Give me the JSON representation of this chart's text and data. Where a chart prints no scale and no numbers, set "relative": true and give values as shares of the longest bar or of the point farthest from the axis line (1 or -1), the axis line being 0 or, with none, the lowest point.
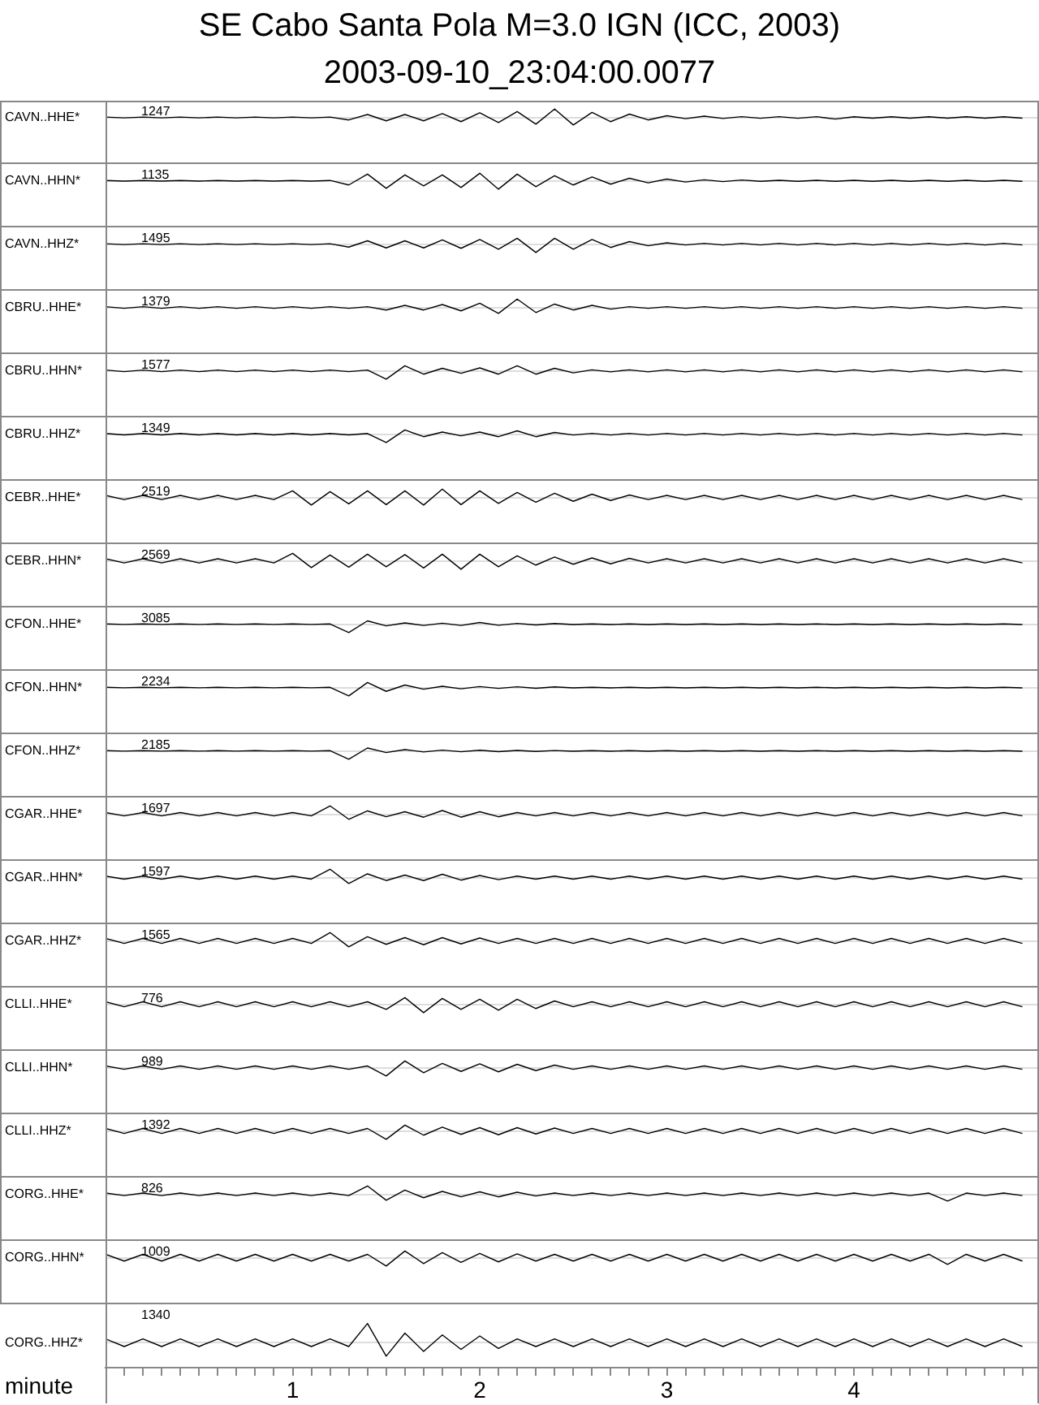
{
  "chart_data": [
    {
      "type": "line",
      "title": "SE Cabo Santa Pola M=3.0 IGN (ICC, 2003)",
      "subtitle": "2003-09-10_23:04:00.0077",
      "ylabel": "CAVN..HHE*",
      "annotations": [
        "1247"
      ],
      "relative": true,
      "tick_labels": false,
      "xlim": [
        0,
        4.98
      ],
      "color": "#000000",
      "x": [
        0,
        0.1,
        0.2,
        0.3,
        0.4,
        0.5,
        0.6,
        0.7,
        0.8,
        0.9,
        1,
        1.1,
        1.2,
        1.3,
        1.4,
        1.5,
        1.6,
        1.7,
        1.8,
        1.9,
        2,
        2.1,
        2.2,
        2.3,
        2.4,
        2.5,
        2.6,
        2.7,
        2.8,
        2.9,
        3,
        3.1,
        3.2,
        3.3,
        3.4,
        3.5,
        3.6,
        3.7,
        3.8,
        3.9,
        4,
        4.1,
        4.2,
        4.3,
        4.4,
        4.5,
        4.6,
        4.7,
        4.8,
        4.9
      ],
      "values": [
        0.05,
        -0.05,
        0.05,
        -0.05,
        0.05,
        -0.05,
        0.05,
        -0.05,
        0.05,
        -0.05,
        0.05,
        -0.05,
        0.05,
        -0.3,
        0.35,
        -0.4,
        0.35,
        -0.4,
        0.45,
        -0.5,
        0.55,
        -0.6,
        0.7,
        -0.8,
        1,
        -0.9,
        0.6,
        -0.5,
        0.4,
        -0.3,
        0.2,
        -0.15,
        0.15,
        -0.12,
        0.1,
        -0.1,
        0.1,
        -0.1,
        0.1,
        -0.2,
        0.08,
        -0.08,
        0.08,
        -0.08,
        0.08,
        -0.08,
        0.08,
        -0.08,
        0.08,
        -0.08
      ]
    },
    {
      "type": "line",
      "ylabel": "CAVN..HHN*",
      "annotations": [
        "1135"
      ],
      "relative": true,
      "tick_labels": false,
      "xlim": [
        0,
        4.98
      ],
      "color": "#000000",
      "x": [
        0,
        0.1,
        0.2,
        0.3,
        0.4,
        0.5,
        0.6,
        0.7,
        0.8,
        0.9,
        1,
        1.1,
        1.2,
        1.3,
        1.4,
        1.5,
        1.6,
        1.7,
        1.8,
        1.9,
        2,
        2.1,
        2.2,
        2.3,
        2.4,
        2.5,
        2.6,
        2.7,
        2.8,
        2.9,
        3,
        3.1,
        3.2,
        3.3,
        3.4,
        3.5,
        3.6,
        3.7,
        3.8,
        3.9,
        4,
        4.1,
        4.2,
        4.3,
        4.4,
        4.5,
        4.6,
        4.7,
        4.8,
        4.9
      ],
      "values": [
        0.04,
        -0.04,
        0.04,
        -0.04,
        0.04,
        -0.04,
        0.04,
        -0.04,
        0.04,
        -0.04,
        0.04,
        -0.04,
        0.04,
        -0.5,
        0.8,
        -0.9,
        0.7,
        -0.6,
        0.7,
        -0.8,
        0.9,
        -1,
        0.8,
        -0.7,
        0.6,
        -0.5,
        0.45,
        -0.4,
        0.3,
        -0.25,
        0.2,
        -0.15,
        0.12,
        -0.1,
        0.1,
        -0.06,
        0.06,
        -0.06,
        0.06,
        -0.06,
        0.06,
        -0.06,
        0.06,
        -0.06,
        0.06,
        -0.06,
        0.06,
        -0.06,
        0.06,
        -0.06
      ]
    },
    {
      "type": "line",
      "ylabel": "CAVN..HHZ*",
      "annotations": [
        "1495"
      ],
      "relative": true,
      "tick_labels": false,
      "xlim": [
        0,
        4.98
      ],
      "color": "#000000",
      "x": [
        0,
        0.1,
        0.2,
        0.3,
        0.4,
        0.5,
        0.6,
        0.7,
        0.8,
        0.9,
        1,
        1.1,
        1.2,
        1.3,
        1.4,
        1.5,
        1.6,
        1.7,
        1.8,
        1.9,
        2,
        2.1,
        2.2,
        2.3,
        2.4,
        2.5,
        2.6,
        2.7,
        2.8,
        2.9,
        3,
        3.1,
        3.2,
        3.3,
        3.4,
        3.5,
        3.6,
        3.7,
        3.8,
        3.9,
        4,
        4.1,
        4.2,
        4.3,
        4.4,
        4.5,
        4.6,
        4.7,
        4.8,
        4.9
      ],
      "values": [
        0.05,
        -0.05,
        0.05,
        -0.05,
        0.05,
        -0.05,
        0.05,
        -0.05,
        0.05,
        -0.05,
        0.05,
        -0.05,
        0.05,
        -0.35,
        0.4,
        -0.45,
        0.4,
        -0.45,
        0.5,
        -0.5,
        0.55,
        -0.6,
        0.7,
        -1,
        0.7,
        -0.6,
        0.55,
        -0.4,
        0.3,
        -0.2,
        0.15,
        -0.1,
        0.1,
        -0.1,
        0.1,
        -0.1,
        0.1,
        -0.1,
        0.1,
        -0.1,
        0.1,
        -0.1,
        0.1,
        -0.1,
        0.1,
        -0.1,
        0.1,
        -0.1,
        0.1,
        -0.1
      ]
    },
    {
      "type": "line",
      "ylabel": "CBRU..HHE*",
      "annotations": [
        "1379"
      ],
      "relative": true,
      "tick_labels": false,
      "xlim": [
        0,
        4.98
      ],
      "color": "#000000",
      "x": [
        0,
        0.1,
        0.2,
        0.3,
        0.4,
        0.5,
        0.6,
        0.7,
        0.8,
        0.9,
        1,
        1.1,
        1.2,
        1.3,
        1.4,
        1.5,
        1.6,
        1.7,
        1.8,
        1.9,
        2,
        2.1,
        2.2,
        2.3,
        2.4,
        2.5,
        2.6,
        2.7,
        2.8,
        2.9,
        3,
        3.1,
        3.2,
        3.3,
        3.4,
        3.5,
        3.6,
        3.7,
        3.8,
        3.9,
        4,
        4.1,
        4.2,
        4.3,
        4.4,
        4.5,
        4.6,
        4.7,
        4.8,
        4.9
      ],
      "values": [
        0.1,
        -0.1,
        0.1,
        -0.1,
        0.1,
        -0.1,
        0.1,
        -0.1,
        0.1,
        -0.1,
        0.1,
        -0.1,
        0.1,
        -0.1,
        0.1,
        -0.3,
        0.25,
        -0.3,
        0.35,
        -0.4,
        0.5,
        -0.7,
        1,
        -0.6,
        0.4,
        -0.3,
        0.25,
        -0.2,
        0.1,
        -0.1,
        0.1,
        -0.1,
        0.1,
        -0.1,
        0.1,
        -0.1,
        0.1,
        -0.1,
        0.1,
        -0.1,
        0.1,
        -0.1,
        0.1,
        -0.1,
        0.1,
        -0.1,
        0.1,
        -0.1,
        0.1,
        -0.1
      ]
    },
    {
      "type": "line",
      "ylabel": "CBRU..HHN*",
      "annotations": [
        "1577"
      ],
      "relative": true,
      "tick_labels": false,
      "xlim": [
        0,
        4.98
      ],
      "color": "#000000",
      "x": [
        0,
        0.1,
        0.2,
        0.3,
        0.4,
        0.5,
        0.6,
        0.7,
        0.8,
        0.9,
        1,
        1.1,
        1.2,
        1.3,
        1.4,
        1.5,
        1.6,
        1.7,
        1.8,
        1.9,
        2,
        2.1,
        2.2,
        2.3,
        2.4,
        2.5,
        2.6,
        2.7,
        2.8,
        2.9,
        3,
        3.1,
        3.2,
        3.3,
        3.4,
        3.5,
        3.6,
        3.7,
        3.8,
        3.9,
        4,
        4.1,
        4.2,
        4.3,
        4.4,
        4.5,
        4.6,
        4.7,
        4.8,
        4.9
      ],
      "values": [
        0.1,
        -0.1,
        0.1,
        -0.1,
        0.1,
        -0.1,
        0.1,
        -0.1,
        0.1,
        -0.1,
        0.1,
        -0.1,
        0.1,
        -0.1,
        0.1,
        -1,
        0.6,
        -0.4,
        0.3,
        -0.3,
        0.35,
        -0.4,
        0.6,
        -0.4,
        0.3,
        -0.25,
        0.12,
        -0.12,
        0.12,
        -0.12,
        0.12,
        -0.12,
        0.12,
        -0.12,
        0.12,
        -0.12,
        0.12,
        -0.12,
        0.12,
        -0.12,
        0.12,
        -0.12,
        0.12,
        -0.12,
        0.12,
        -0.12,
        0.12,
        -0.12,
        0.12,
        -0.12
      ]
    },
    {
      "type": "line",
      "ylabel": "CBRU..HHZ*",
      "annotations": [
        "1349"
      ],
      "relative": true,
      "tick_labels": false,
      "xlim": [
        0,
        4.98
      ],
      "color": "#000000",
      "x": [
        0,
        0.1,
        0.2,
        0.3,
        0.4,
        0.5,
        0.6,
        0.7,
        0.8,
        0.9,
        1,
        1.1,
        1.2,
        1.3,
        1.4,
        1.5,
        1.6,
        1.7,
        1.8,
        1.9,
        2,
        2.1,
        2.2,
        2.3,
        2.4,
        2.5,
        2.6,
        2.7,
        2.8,
        2.9,
        3,
        3.1,
        3.2,
        3.3,
        3.4,
        3.5,
        3.6,
        3.7,
        3.8,
        3.9,
        4,
        4.1,
        4.2,
        4.3,
        4.4,
        4.5,
        4.6,
        4.7,
        4.8,
        4.9
      ],
      "values": [
        0.08,
        -0.08,
        0.08,
        -0.08,
        0.08,
        -0.08,
        0.08,
        -0.08,
        0.08,
        -0.08,
        0.08,
        -0.08,
        0.08,
        -0.08,
        0.08,
        -1,
        0.5,
        -0.3,
        0.25,
        -0.2,
        0.25,
        -0.3,
        0.4,
        -0.3,
        0.2,
        -0.1,
        0.1,
        -0.1,
        0.1,
        -0.1,
        0.1,
        -0.1,
        0.1,
        -0.1,
        0.1,
        -0.1,
        0.1,
        -0.1,
        0.1,
        -0.1,
        0.1,
        -0.1,
        0.1,
        -0.1,
        0.1,
        -0.1,
        0.1,
        -0.1,
        0.1,
        -0.1
      ]
    },
    {
      "type": "line",
      "ylabel": "CEBR..HHE*",
      "annotations": [
        "2519"
      ],
      "relative": true,
      "tick_labels": false,
      "xlim": [
        0,
        4.98
      ],
      "color": "#000000",
      "x": [
        0,
        0.1,
        0.2,
        0.3,
        0.4,
        0.5,
        0.6,
        0.7,
        0.8,
        0.9,
        1,
        1.1,
        1.2,
        1.3,
        1.4,
        1.5,
        1.6,
        1.7,
        1.8,
        1.9,
        2,
        2.1,
        2.2,
        2.3,
        2.4,
        2.5,
        2.6,
        2.7,
        2.8,
        2.9,
        3,
        3.1,
        3.2,
        3.3,
        3.4,
        3.5,
        3.6,
        3.7,
        3.8,
        3.9,
        4,
        4.1,
        4.2,
        4.3,
        4.4,
        4.5,
        4.6,
        4.7,
        4.8,
        4.9
      ],
      "values": [
        0.25,
        -0.25,
        0.25,
        -0.25,
        0.25,
        -0.25,
        0.25,
        -0.25,
        0.25,
        -0.25,
        0.8,
        -0.9,
        0.7,
        -0.75,
        0.8,
        -0.85,
        0.8,
        -0.9,
        1,
        -0.85,
        0.8,
        -0.7,
        0.6,
        -0.55,
        0.5,
        -0.45,
        0.4,
        -0.35,
        0.3,
        -0.25,
        0.25,
        -0.25,
        0.25,
        -0.25,
        0.25,
        -0.25,
        0.25,
        -0.25,
        0.25,
        -0.25,
        0.25,
        -0.25,
        0.25,
        -0.25,
        0.25,
        -0.25,
        0.25,
        -0.25,
        0.25,
        -0.25
      ]
    },
    {
      "type": "line",
      "ylabel": "CEBR..HHN*",
      "annotations": [
        "2569"
      ],
      "relative": true,
      "tick_labels": false,
      "xlim": [
        0,
        4.98
      ],
      "color": "#000000",
      "x": [
        0,
        0.1,
        0.2,
        0.3,
        0.4,
        0.5,
        0.6,
        0.7,
        0.8,
        0.9,
        1,
        1.1,
        1.2,
        1.3,
        1.4,
        1.5,
        1.6,
        1.7,
        1.8,
        1.9,
        2,
        2.1,
        2.2,
        2.3,
        2.4,
        2.5,
        2.6,
        2.7,
        2.8,
        2.9,
        3,
        3.1,
        3.2,
        3.3,
        3.4,
        3.5,
        3.6,
        3.7,
        3.8,
        3.9,
        4,
        4.1,
        4.2,
        4.3,
        4.4,
        4.5,
        4.6,
        4.7,
        4.8,
        4.9
      ],
      "values": [
        0.25,
        -0.25,
        0.25,
        -0.25,
        0.25,
        -0.25,
        0.25,
        -0.25,
        0.25,
        -0.25,
        0.9,
        -0.8,
        0.7,
        -0.75,
        0.8,
        -0.7,
        0.75,
        -0.85,
        0.8,
        -1,
        0.8,
        -0.7,
        0.6,
        -0.5,
        0.45,
        -0.4,
        0.35,
        -0.35,
        0.3,
        -0.25,
        0.25,
        -0.25,
        0.25,
        -0.25,
        0.25,
        -0.25,
        0.25,
        -0.25,
        0.25,
        -0.25,
        0.25,
        -0.25,
        0.25,
        -0.25,
        0.25,
        -0.25,
        0.25,
        -0.25,
        0.25,
        -0.25
      ]
    },
    {
      "type": "line",
      "ylabel": "CFON..HHE*",
      "annotations": [
        "3085"
      ],
      "relative": true,
      "tick_labels": false,
      "xlim": [
        0,
        4.98
      ],
      "color": "#000000",
      "x": [
        0,
        0.1,
        0.2,
        0.3,
        0.4,
        0.5,
        0.6,
        0.7,
        0.8,
        0.9,
        1,
        1.1,
        1.2,
        1.3,
        1.4,
        1.5,
        1.6,
        1.7,
        1.8,
        1.9,
        2,
        2.1,
        2.2,
        2.3,
        2.4,
        2.5,
        2.6,
        2.7,
        2.8,
        2.9,
        3,
        3.1,
        3.2,
        3.3,
        3.4,
        3.5,
        3.6,
        3.7,
        3.8,
        3.9,
        4,
        4.1,
        4.2,
        4.3,
        4.4,
        4.5,
        4.6,
        4.7,
        4.8,
        4.9
      ],
      "values": [
        0.03,
        -0.03,
        0.03,
        -0.03,
        0.03,
        -0.03,
        0.03,
        -0.03,
        0.03,
        -0.03,
        0.03,
        -0.03,
        0.03,
        -1,
        0.4,
        -0.2,
        0.15,
        -0.15,
        0.12,
        -0.15,
        0.2,
        -0.12,
        0.1,
        -0.08,
        0.08,
        -0.04,
        0.04,
        -0.04,
        0.04,
        -0.04,
        0.04,
        -0.04,
        0.04,
        -0.04,
        0.04,
        -0.04,
        0.04,
        -0.04,
        0.04,
        -0.04,
        0.04,
        -0.04,
        0.04,
        -0.04,
        0.04,
        -0.04,
        0.04,
        -0.04,
        0.04,
        -0.04
      ]
    },
    {
      "type": "line",
      "ylabel": "CFON..HHN*",
      "annotations": [
        "2234"
      ],
      "relative": true,
      "tick_labels": false,
      "xlim": [
        0,
        4.98
      ],
      "color": "#000000",
      "x": [
        0,
        0.1,
        0.2,
        0.3,
        0.4,
        0.5,
        0.6,
        0.7,
        0.8,
        0.9,
        1,
        1.1,
        1.2,
        1.3,
        1.4,
        1.5,
        1.6,
        1.7,
        1.8,
        1.9,
        2,
        2.1,
        2.2,
        2.3,
        2.4,
        2.5,
        2.6,
        2.7,
        2.8,
        2.9,
        3,
        3.1,
        3.2,
        3.3,
        3.4,
        3.5,
        3.6,
        3.7,
        3.8,
        3.9,
        4,
        4.1,
        4.2,
        4.3,
        4.4,
        4.5,
        4.6,
        4.7,
        4.8,
        4.9
      ],
      "values": [
        0.03,
        -0.03,
        0.03,
        -0.03,
        0.03,
        -0.03,
        0.03,
        -0.03,
        0.03,
        -0.03,
        0.03,
        -0.03,
        0.03,
        -1,
        0.6,
        -0.45,
        0.3,
        -0.2,
        0.15,
        -0.15,
        0.12,
        -0.1,
        0.1,
        -0.08,
        0.08,
        -0.04,
        0.04,
        -0.04,
        0.04,
        -0.04,
        0.04,
        -0.04,
        0.04,
        -0.04,
        0.04,
        -0.04,
        0.04,
        -0.04,
        0.04,
        -0.04,
        0.04,
        -0.04,
        0.04,
        -0.04,
        0.04,
        -0.04,
        0.04,
        -0.04,
        0.04,
        -0.04
      ]
    },
    {
      "type": "line",
      "ylabel": "CFON..HHZ*",
      "annotations": [
        "2185"
      ],
      "relative": true,
      "tick_labels": false,
      "xlim": [
        0,
        4.98
      ],
      "color": "#000000",
      "x": [
        0,
        0.1,
        0.2,
        0.3,
        0.4,
        0.5,
        0.6,
        0.7,
        0.8,
        0.9,
        1,
        1.1,
        1.2,
        1.3,
        1.4,
        1.5,
        1.6,
        1.7,
        1.8,
        1.9,
        2,
        2.1,
        2.2,
        2.3,
        2.4,
        2.5,
        2.6,
        2.7,
        2.8,
        2.9,
        3,
        3.1,
        3.2,
        3.3,
        3.4,
        3.5,
        3.6,
        3.7,
        3.8,
        3.9,
        4,
        4.1,
        4.2,
        4.3,
        4.4,
        4.5,
        4.6,
        4.7,
        4.8,
        4.9
      ],
      "values": [
        0.03,
        -0.03,
        0.03,
        -0.03,
        0.03,
        -0.03,
        0.03,
        -0.03,
        0.03,
        -0.03,
        0.03,
        -0.03,
        0.03,
        -1,
        0.35,
        -0.2,
        0.15,
        -0.12,
        0.1,
        -0.1,
        0.08,
        -0.08,
        0.06,
        -0.06,
        0.05,
        -0.04,
        0.04,
        -0.04,
        0.04,
        -0.04,
        0.04,
        -0.04,
        0.04,
        -0.04,
        0.04,
        -0.04,
        0.04,
        -0.04,
        0.04,
        -0.04,
        0.04,
        -0.04,
        0.04,
        -0.04,
        0.04,
        -0.04,
        0.04,
        -0.04,
        0.04,
        -0.04
      ]
    },
    {
      "type": "line",
      "ylabel": "CGAR..HHE*",
      "annotations": [
        "1697"
      ],
      "relative": true,
      "tick_labels": false,
      "xlim": [
        0,
        4.98
      ],
      "color": "#000000",
      "x": [
        0,
        0.1,
        0.2,
        0.3,
        0.4,
        0.5,
        0.6,
        0.7,
        0.8,
        0.9,
        1,
        1.1,
        1.2,
        1.3,
        1.4,
        1.5,
        1.6,
        1.7,
        1.8,
        1.9,
        2,
        2.1,
        2.2,
        2.3,
        2.4,
        2.5,
        2.6,
        2.7,
        2.8,
        2.9,
        3,
        3.1,
        3.2,
        3.3,
        3.4,
        3.5,
        3.6,
        3.7,
        3.8,
        3.9,
        4,
        4.1,
        4.2,
        4.3,
        4.4,
        4.5,
        4.6,
        4.7,
        4.8,
        4.9
      ],
      "values": [
        0.2,
        -0.2,
        0.2,
        -0.2,
        0.2,
        -0.2,
        0.2,
        -0.2,
        0.2,
        -0.2,
        0.2,
        -0.2,
        1,
        -0.6,
        0.4,
        -0.3,
        0.3,
        -0.35,
        0.45,
        -0.35,
        0.3,
        -0.3,
        0.2,
        -0.2,
        0.2,
        -0.2,
        0.2,
        -0.2,
        0.2,
        -0.2,
        0.2,
        -0.2,
        0.2,
        -0.2,
        0.2,
        -0.2,
        0.2,
        -0.2,
        0.2,
        -0.2,
        0.2,
        -0.2,
        0.2,
        -0.2,
        0.2,
        -0.2,
        0.2,
        -0.2,
        0.2,
        -0.2
      ]
    },
    {
      "type": "line",
      "ylabel": "CGAR..HHN*",
      "annotations": [
        "1597"
      ],
      "relative": true,
      "tick_labels": false,
      "xlim": [
        0,
        4.98
      ],
      "color": "#000000",
      "x": [
        0,
        0.1,
        0.2,
        0.3,
        0.4,
        0.5,
        0.6,
        0.7,
        0.8,
        0.9,
        1,
        1.1,
        1.2,
        1.3,
        1.4,
        1.5,
        1.6,
        1.7,
        1.8,
        1.9,
        2,
        2.1,
        2.2,
        2.3,
        2.4,
        2.5,
        2.6,
        2.7,
        2.8,
        2.9,
        3,
        3.1,
        3.2,
        3.3,
        3.4,
        3.5,
        3.6,
        3.7,
        3.8,
        3.9,
        4,
        4.1,
        4.2,
        4.3,
        4.4,
        4.5,
        4.6,
        4.7,
        4.8,
        4.9
      ],
      "values": [
        0.18,
        -0.18,
        0.18,
        -0.18,
        0.18,
        -0.18,
        0.18,
        -0.18,
        0.18,
        -0.18,
        0.18,
        -0.18,
        1,
        -0.7,
        0.45,
        -0.35,
        0.3,
        -0.35,
        0.4,
        -0.3,
        0.25,
        -0.25,
        0.18,
        -0.18,
        0.18,
        -0.18,
        0.18,
        -0.18,
        0.18,
        -0.18,
        0.18,
        -0.18,
        0.18,
        -0.18,
        0.18,
        -0.18,
        0.18,
        -0.18,
        0.18,
        -0.18,
        0.18,
        -0.18,
        0.18,
        -0.18,
        0.18,
        -0.18,
        0.18,
        -0.18,
        0.18,
        -0.18
      ]
    },
    {
      "type": "line",
      "ylabel": "CGAR..HHZ*",
      "annotations": [
        "1565"
      ],
      "relative": true,
      "tick_labels": false,
      "xlim": [
        0,
        4.98
      ],
      "color": "#000000",
      "x": [
        0,
        0.1,
        0.2,
        0.3,
        0.4,
        0.5,
        0.6,
        0.7,
        0.8,
        0.9,
        1,
        1.1,
        1.2,
        1.3,
        1.4,
        1.5,
        1.6,
        1.7,
        1.8,
        1.9,
        2,
        2.1,
        2.2,
        2.3,
        2.4,
        2.5,
        2.6,
        2.7,
        2.8,
        2.9,
        3,
        3.1,
        3.2,
        3.3,
        3.4,
        3.5,
        3.6,
        3.7,
        3.8,
        3.9,
        4,
        4.1,
        4.2,
        4.3,
        4.4,
        4.5,
        4.6,
        4.7,
        4.8,
        4.9
      ],
      "values": [
        0.3,
        -0.3,
        0.3,
        -0.3,
        0.3,
        -0.3,
        0.3,
        -0.3,
        0.3,
        -0.3,
        0.3,
        -0.3,
        1,
        -0.7,
        0.5,
        -0.4,
        0.4,
        -0.45,
        0.4,
        -0.35,
        0.35,
        -0.3,
        0.3,
        -0.3,
        0.3,
        -0.3,
        0.3,
        -0.3,
        0.3,
        -0.3,
        0.3,
        -0.3,
        0.3,
        -0.3,
        0.3,
        -0.3,
        0.3,
        -0.3,
        0.3,
        -0.3,
        0.3,
        -0.3,
        0.3,
        -0.3,
        0.3,
        -0.3,
        0.3,
        -0.3,
        0.3,
        -0.3
      ]
    },
    {
      "type": "line",
      "ylabel": "CLLI..HHE*",
      "annotations": [
        "776"
      ],
      "relative": true,
      "tick_labels": false,
      "xlim": [
        0,
        4.98
      ],
      "color": "#000000",
      "x": [
        0,
        0.1,
        0.2,
        0.3,
        0.4,
        0.5,
        0.6,
        0.7,
        0.8,
        0.9,
        1,
        1.1,
        1.2,
        1.3,
        1.4,
        1.5,
        1.6,
        1.7,
        1.8,
        1.9,
        2,
        2.1,
        2.2,
        2.3,
        2.4,
        2.5,
        2.6,
        2.7,
        2.8,
        2.9,
        3,
        3.1,
        3.2,
        3.3,
        3.4,
        3.5,
        3.6,
        3.7,
        3.8,
        3.9,
        4,
        4.1,
        4.2,
        4.3,
        4.4,
        4.5,
        4.6,
        4.7,
        4.8,
        4.9
      ],
      "values": [
        0.3,
        -0.3,
        0.3,
        -0.3,
        0.3,
        -0.3,
        0.3,
        -0.3,
        0.3,
        -0.3,
        0.3,
        -0.3,
        0.3,
        -0.3,
        0.3,
        -0.6,
        0.8,
        -1,
        0.7,
        -0.6,
        0.6,
        -0.7,
        0.6,
        -0.5,
        0.4,
        -0.3,
        0.3,
        -0.3,
        0.3,
        -0.3,
        0.3,
        -0.3,
        0.3,
        -0.3,
        0.3,
        -0.3,
        0.3,
        -0.3,
        0.3,
        -0.3,
        0.3,
        -0.3,
        0.3,
        -0.3,
        0.3,
        -0.3,
        0.3,
        -0.3,
        0.3,
        -0.3
      ]
    },
    {
      "type": "line",
      "ylabel": "CLLI..HHN*",
      "annotations": [
        "989"
      ],
      "relative": true,
      "tick_labels": false,
      "xlim": [
        0,
        4.98
      ],
      "color": "#000000",
      "x": [
        0,
        0.1,
        0.2,
        0.3,
        0.4,
        0.5,
        0.6,
        0.7,
        0.8,
        0.9,
        1,
        1.1,
        1.2,
        1.3,
        1.4,
        1.5,
        1.6,
        1.7,
        1.8,
        1.9,
        2,
        2.1,
        2.2,
        2.3,
        2.4,
        2.5,
        2.6,
        2.7,
        2.8,
        2.9,
        3,
        3.1,
        3.2,
        3.3,
        3.4,
        3.5,
        3.6,
        3.7,
        3.8,
        3.9,
        4,
        4.1,
        4.2,
        4.3,
        4.4,
        4.5,
        4.6,
        4.7,
        4.8,
        4.9
      ],
      "values": [
        0.2,
        -0.2,
        0.2,
        -0.2,
        0.2,
        -0.2,
        0.2,
        -0.2,
        0.2,
        -0.2,
        0.2,
        -0.2,
        0.2,
        -0.2,
        0.2,
        -1,
        0.8,
        -0.6,
        0.5,
        -0.45,
        0.45,
        -0.5,
        0.4,
        -0.35,
        0.3,
        -0.2,
        0.2,
        -0.2,
        0.2,
        -0.2,
        0.2,
        -0.2,
        0.2,
        -0.2,
        0.2,
        -0.2,
        0.2,
        -0.2,
        0.2,
        -0.2,
        0.2,
        -0.2,
        0.2,
        -0.2,
        0.2,
        -0.2,
        0.2,
        -0.2,
        0.2,
        -0.2
      ]
    },
    {
      "type": "line",
      "ylabel": "CLLI..HHZ*",
      "annotations": [
        "1392"
      ],
      "relative": true,
      "tick_labels": false,
      "xlim": [
        0,
        4.98
      ],
      "color": "#000000",
      "x": [
        0,
        0.1,
        0.2,
        0.3,
        0.4,
        0.5,
        0.6,
        0.7,
        0.8,
        0.9,
        1,
        1.1,
        1.2,
        1.3,
        1.4,
        1.5,
        1.6,
        1.7,
        1.8,
        1.9,
        2,
        2.1,
        2.2,
        2.3,
        2.4,
        2.5,
        2.6,
        2.7,
        2.8,
        2.9,
        3,
        3.1,
        3.2,
        3.3,
        3.4,
        3.5,
        3.6,
        3.7,
        3.8,
        3.9,
        4,
        4.1,
        4.2,
        4.3,
        4.4,
        4.5,
        4.6,
        4.7,
        4.8,
        4.9
      ],
      "values": [
        0.3,
        -0.3,
        0.3,
        -0.3,
        0.3,
        -0.3,
        0.3,
        -0.3,
        0.3,
        -0.3,
        0.3,
        -0.3,
        0.3,
        -0.3,
        0.3,
        -1,
        0.7,
        -0.5,
        0.45,
        -0.4,
        0.4,
        -0.45,
        0.4,
        -0.35,
        0.35,
        -0.3,
        0.3,
        -0.3,
        0.3,
        -0.3,
        0.3,
        -0.3,
        0.3,
        -0.3,
        0.3,
        -0.3,
        0.3,
        -0.3,
        0.3,
        -0.3,
        0.3,
        -0.3,
        0.3,
        -0.3,
        0.3,
        -0.3,
        0.3,
        -0.3,
        0.3,
        -0.3
      ]
    },
    {
      "type": "line",
      "ylabel": "CORG..HHE*",
      "annotations": [
        "826"
      ],
      "relative": true,
      "tick_labels": false,
      "xlim": [
        0,
        4.98
      ],
      "color": "#000000",
      "x": [
        0,
        0.1,
        0.2,
        0.3,
        0.4,
        0.5,
        0.6,
        0.7,
        0.8,
        0.9,
        1,
        1.1,
        1.2,
        1.3,
        1.4,
        1.5,
        1.6,
        1.7,
        1.8,
        1.9,
        2,
        2.1,
        2.2,
        2.3,
        2.4,
        2.5,
        2.6,
        2.7,
        2.8,
        2.9,
        3,
        3.1,
        3.2,
        3.3,
        3.4,
        3.5,
        3.6,
        3.7,
        3.8,
        3.9,
        4,
        4.1,
        4.2,
        4.3,
        4.4,
        4.5,
        4.6,
        4.7,
        4.8,
        4.9
      ],
      "values": [
        0.15,
        -0.15,
        0.15,
        -0.15,
        0.15,
        -0.15,
        0.15,
        -0.15,
        0.15,
        -0.15,
        0.15,
        -0.15,
        0.15,
        -0.15,
        1,
        -0.7,
        0.5,
        -0.4,
        0.35,
        -0.3,
        0.3,
        -0.3,
        0.25,
        -0.2,
        0.15,
        -0.15,
        0.15,
        -0.15,
        0.15,
        -0.15,
        0.15,
        -0.15,
        0.15,
        -0.15,
        0.15,
        -0.15,
        0.15,
        -0.15,
        0.15,
        -0.15,
        0.15,
        -0.15,
        0.15,
        -0.15,
        0.15,
        -0.8,
        0.15,
        -0.15,
        0.15,
        -0.15
      ]
    },
    {
      "type": "line",
      "ylabel": "CORG..HHN*",
      "annotations": [
        "1009"
      ],
      "relative": true,
      "tick_labels": false,
      "xlim": [
        0,
        4.98
      ],
      "color": "#000000",
      "x": [
        0,
        0.1,
        0.2,
        0.3,
        0.4,
        0.5,
        0.6,
        0.7,
        0.8,
        0.9,
        1,
        1.1,
        1.2,
        1.3,
        1.4,
        1.5,
        1.6,
        1.7,
        1.8,
        1.9,
        2,
        2.1,
        2.2,
        2.3,
        2.4,
        2.5,
        2.6,
        2.7,
        2.8,
        2.9,
        3,
        3.1,
        3.2,
        3.3,
        3.4,
        3.5,
        3.6,
        3.7,
        3.8,
        3.9,
        4,
        4.1,
        4.2,
        4.3,
        4.4,
        4.5,
        4.6,
        4.7,
        4.8,
        4.9
      ],
      "values": [
        0.4,
        -0.4,
        0.4,
        -0.4,
        0.4,
        -0.4,
        0.4,
        -0.4,
        0.4,
        -0.4,
        0.4,
        -0.4,
        0.4,
        -0.4,
        0.4,
        -1,
        0.8,
        -0.7,
        0.6,
        -0.55,
        0.5,
        -0.5,
        0.45,
        -0.4,
        0.4,
        -0.4,
        0.4,
        -0.4,
        0.4,
        -0.4,
        0.4,
        -0.4,
        0.4,
        -0.4,
        0.4,
        -0.4,
        0.4,
        -0.4,
        0.4,
        -0.4,
        0.4,
        -0.4,
        0.4,
        -0.4,
        0.4,
        -0.8,
        0.4,
        -0.4,
        0.4,
        -0.4
      ]
    },
    {
      "type": "line",
      "ylabel": "CORG..HHZ*",
      "xlabel": "minute",
      "annotations": [
        "1340"
      ],
      "relative": true,
      "tick_labels": "x",
      "xlim": [
        0,
        4.98
      ],
      "xticks": [
        {
          "value": 0.1,
          "label": null
        },
        {
          "value": 0.2,
          "label": null
        },
        {
          "value": 0.3,
          "label": null
        },
        {
          "value": 0.4,
          "label": null
        },
        {
          "value": 0.5,
          "label": null
        },
        {
          "value": 0.6,
          "label": null
        },
        {
          "value": 0.7,
          "label": null
        },
        {
          "value": 0.8,
          "label": null
        },
        {
          "value": 0.9,
          "label": null
        },
        1,
        {
          "value": 1.1,
          "label": null
        },
        {
          "value": 1.2,
          "label": null
        },
        {
          "value": 1.3,
          "label": null
        },
        {
          "value": 1.4,
          "label": null
        },
        {
          "value": 1.5,
          "label": null
        },
        {
          "value": 1.6,
          "label": null
        },
        {
          "value": 1.7,
          "label": null
        },
        {
          "value": 1.8,
          "label": null
        },
        {
          "value": 1.9,
          "label": null
        },
        2,
        {
          "value": 2.1,
          "label": null
        },
        {
          "value": 2.2,
          "label": null
        },
        {
          "value": 2.3,
          "label": null
        },
        {
          "value": 2.4,
          "label": null
        },
        {
          "value": 2.5,
          "label": null
        },
        {
          "value": 2.6,
          "label": null
        },
        {
          "value": 2.7,
          "label": null
        },
        {
          "value": 2.8,
          "label": null
        },
        {
          "value": 2.9,
          "label": null
        },
        3,
        {
          "value": 3.1,
          "label": null
        },
        {
          "value": 3.2,
          "label": null
        },
        {
          "value": 3.3,
          "label": null
        },
        {
          "value": 3.4,
          "label": null
        },
        {
          "value": 3.5,
          "label": null
        },
        {
          "value": 3.6,
          "label": null
        },
        {
          "value": 3.7,
          "label": null
        },
        {
          "value": 3.8,
          "label": null
        },
        {
          "value": 3.9,
          "label": null
        },
        4,
        {
          "value": 4.1,
          "label": null
        },
        {
          "value": 4.2,
          "label": null
        },
        {
          "value": 4.3,
          "label": null
        },
        {
          "value": 4.4,
          "label": null
        },
        {
          "value": 4.5,
          "label": null
        },
        {
          "value": 4.6,
          "label": null
        },
        {
          "value": 4.7,
          "label": null
        },
        {
          "value": 4.8,
          "label": null
        },
        {
          "value": 4.9,
          "label": null
        }
      ],
      "color": "#000000",
      "x": [
        0,
        0.1,
        0.2,
        0.3,
        0.4,
        0.5,
        0.6,
        0.7,
        0.8,
        0.9,
        1,
        1.1,
        1.2,
        1.3,
        1.4,
        1.5,
        1.6,
        1.7,
        1.8,
        1.9,
        2,
        2.1,
        2.2,
        2.3,
        2.4,
        2.5,
        2.6,
        2.7,
        2.8,
        2.9,
        3,
        3.1,
        3.2,
        3.3,
        3.4,
        3.5,
        3.6,
        3.7,
        3.8,
        3.9,
        4,
        4.1,
        4.2,
        4.3,
        4.4,
        4.5,
        4.6,
        4.7,
        4.8,
        4.9
      ],
      "values": [
        0.2,
        -0.2,
        0.2,
        -0.2,
        0.2,
        -0.2,
        0.2,
        -0.2,
        0.2,
        -0.2,
        0.2,
        -0.2,
        0.2,
        -0.2,
        1,
        -0.7,
        0.5,
        -0.45,
        0.4,
        -0.35,
        0.35,
        -0.3,
        0.2,
        -0.2,
        0.2,
        -0.2,
        0.2,
        -0.2,
        0.2,
        -0.2,
        0.2,
        -0.2,
        0.2,
        -0.2,
        0.2,
        -0.2,
        0.2,
        -0.2,
        0.2,
        -0.2,
        0.2,
        -0.2,
        0.2,
        -0.2,
        0.2,
        -0.2,
        0.2,
        -0.2,
        0.2,
        -0.2
      ]
    }
  ]
}
